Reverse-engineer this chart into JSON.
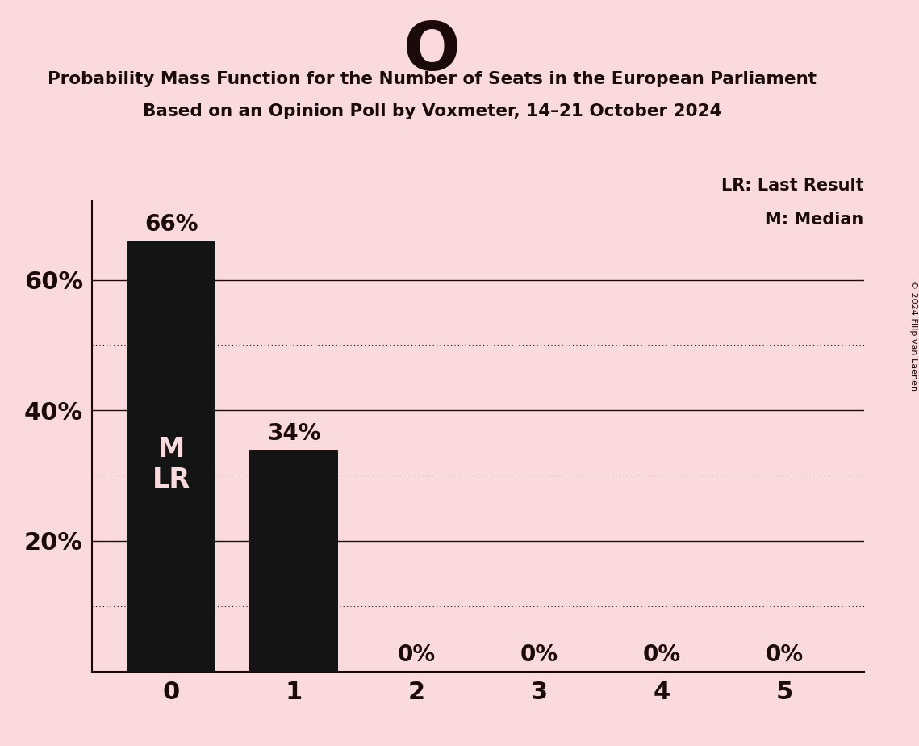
{
  "title_letter": "O",
  "title_line1": "Probability Mass Function for the Number of Seats in the European Parliament",
  "title_line2": "Based on an Opinion Poll by Voxmeter, 14–21 October 2024",
  "copyright_text": "© 2024 Filip van Laenen",
  "categories": [
    0,
    1,
    2,
    3,
    4,
    5
  ],
  "values": [
    0.66,
    0.34,
    0.0,
    0.0,
    0.0,
    0.0
  ],
  "bar_color": "#141414",
  "background_color": "#fadadd",
  "text_color": "#1a0a0a",
  "bar_label_color_outside": "#1a0a0a",
  "bar_label_color_inside": "#fadadd",
  "yticks": [
    0.2,
    0.4,
    0.6
  ],
  "ytick_labels": [
    "20%",
    "40%",
    "60%"
  ],
  "ylim": [
    0,
    0.72
  ],
  "median_bar": 0,
  "lr_bar": 0,
  "legend_lr": "LR: Last Result",
  "legend_m": "M: Median",
  "solid_gridlines": [
    0.2,
    0.4,
    0.6
  ],
  "dotted_gridlines": [
    0.1,
    0.3,
    0.5
  ],
  "bar_width": 0.72
}
